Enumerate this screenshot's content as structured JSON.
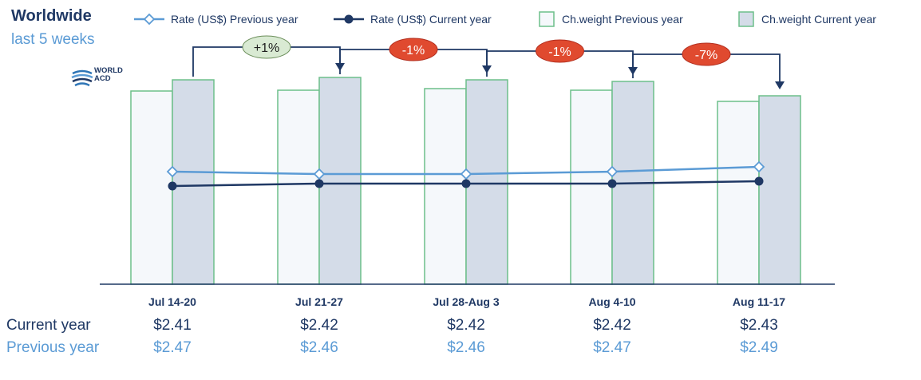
{
  "title": "Worldwide",
  "subtitle": "last 5 weeks",
  "logo": {
    "line1": "WORLD",
    "line2": "ACD"
  },
  "colors": {
    "rate_prev": "#5b9bd5",
    "rate_curr": "#1f3864",
    "bar_prev_fill": "#f5f8fb",
    "bar_prev_stroke": "#6dbf8a",
    "bar_curr_fill": "#d4dce8",
    "bar_curr_stroke": "#6dbf8a",
    "badge_up": "#d9ead3",
    "badge_down": "#e04a2f"
  },
  "chart_data": {
    "type": "bar",
    "categories": [
      "Jul 14-20",
      "Jul 21-27",
      "Jul 28-Aug 3",
      "Aug 4-10",
      "Aug 11-17"
    ],
    "series": [
      {
        "name": "Ch.weight Previous year",
        "kind": "bar",
        "values": [
          242,
          243,
          245,
          243,
          229
        ]
      },
      {
        "name": "Ch.weight Current year",
        "kind": "bar",
        "values": [
          256,
          259,
          256,
          254,
          236
        ]
      },
      {
        "name": "Rate (US$) Previous year",
        "kind": "line",
        "values": [
          2.47,
          2.46,
          2.46,
          2.47,
          2.49
        ]
      },
      {
        "name": "Rate (US$) Current year",
        "kind": "line",
        "values": [
          2.41,
          2.42,
          2.42,
          2.42,
          2.43
        ]
      }
    ],
    "changes": [
      "+1%",
      "-1%",
      "-1%",
      "-7%"
    ],
    "legend_position": "top",
    "grid": false
  },
  "table": {
    "rows": [
      {
        "label": "Current year",
        "values": [
          "$2.41",
          "$2.42",
          "$2.42",
          "$2.42",
          "$2.43"
        ]
      },
      {
        "label": "Previous year",
        "values": [
          "$2.47",
          "$2.46",
          "$2.46",
          "$2.47",
          "$2.49"
        ]
      }
    ]
  }
}
